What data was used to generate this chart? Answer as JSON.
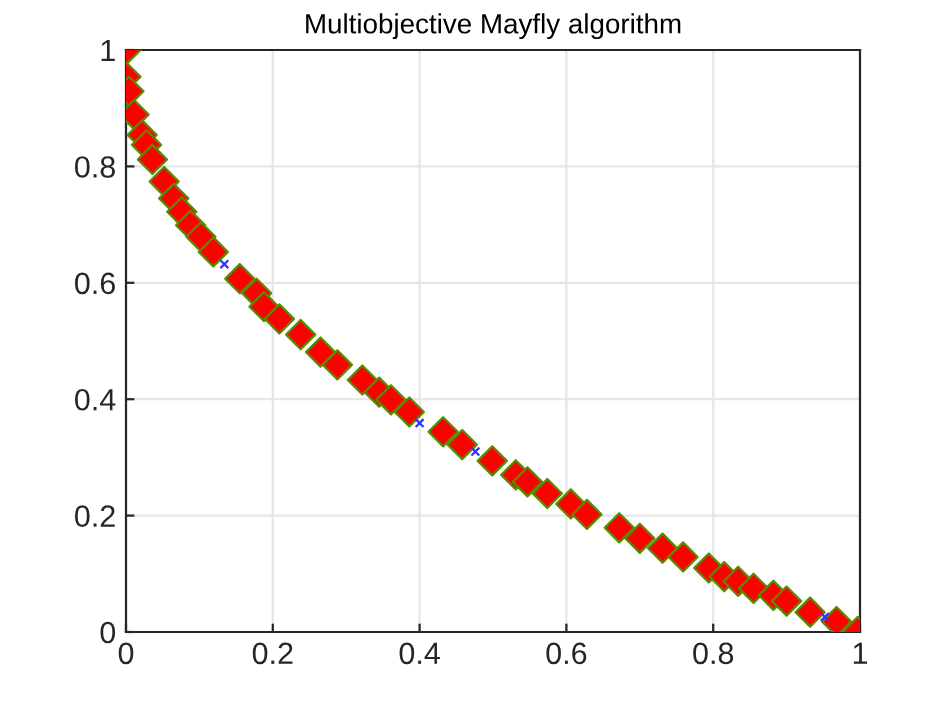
{
  "chart_data": {
    "type": "scatter",
    "title": "Multiobjective Mayfly algorithm",
    "xlim": [
      0,
      1
    ],
    "ylim": [
      0,
      1
    ],
    "xticks": [
      0,
      0.2,
      0.4,
      0.6,
      0.8,
      1
    ],
    "yticks": [
      0,
      0.2,
      0.4,
      0.6,
      0.8,
      1
    ],
    "grid": true,
    "series": [
      {
        "type": "scatter",
        "marker": "cross",
        "color": "#3333ff",
        "x": [
          0.134,
          0.4,
          0.476,
          0.952
        ],
        "values": [
          0.632,
          0.359,
          0.31,
          0.026
        ]
      },
      {
        "marker": "diamond",
        "color": "#ff0000",
        "x": [
          0,
          0,
          0.004,
          0.011,
          0.022,
          0.028,
          0.036,
          0.052,
          0.065,
          0.076,
          0.088,
          0.102,
          0.119,
          0.155,
          0.178,
          0.188,
          0.209,
          0.238,
          0.265,
          0.288,
          0.322,
          0.345,
          0.361,
          0.386,
          0.432,
          0.458,
          0.499,
          0.531,
          0.547,
          0.574,
          0.606,
          0.628,
          0.672,
          0.7,
          0.731,
          0.759,
          0.794,
          0.815,
          0.834,
          0.855,
          0.882,
          0.9,
          0.932,
          0.968,
          0.997
        ],
        "values": [
          1.0,
          0.954,
          0.929,
          0.889,
          0.854,
          0.837,
          0.812,
          0.774,
          0.745,
          0.722,
          0.699,
          0.679,
          0.653,
          0.607,
          0.582,
          0.559,
          0.538,
          0.511,
          0.481,
          0.459,
          0.433,
          0.412,
          0.399,
          0.378,
          0.344,
          0.322,
          0.294,
          0.27,
          0.258,
          0.238,
          0.22,
          0.202,
          0.179,
          0.161,
          0.144,
          0.129,
          0.11,
          0.095,
          0.087,
          0.075,
          0.063,
          0.053,
          0.034,
          0.018,
          0.001
        ]
      }
    ]
  }
}
